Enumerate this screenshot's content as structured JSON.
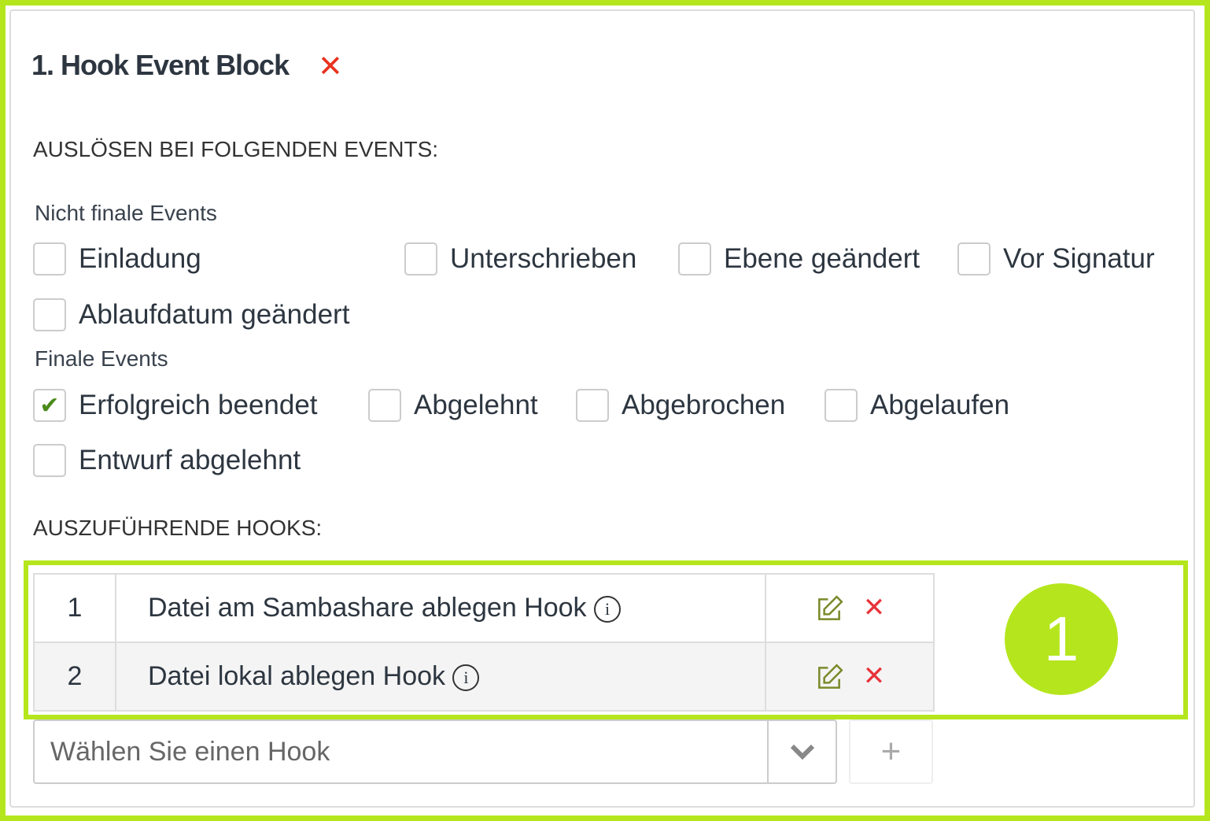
{
  "block": {
    "title": "1. Hook Event Block",
    "close_icon": "close-icon"
  },
  "events": {
    "heading": "AUSLÖSEN BEI FOLGENDEN EVENTS:",
    "non_final_label": "Nicht finale Events",
    "non_final": [
      {
        "label": "Einladung",
        "checked": false
      },
      {
        "label": "Unterschrieben",
        "checked": false
      },
      {
        "label": "Ebene geändert",
        "checked": false
      },
      {
        "label": "Vor Signatur",
        "checked": false
      },
      {
        "label": "Ablaufdatum geändert",
        "checked": false
      }
    ],
    "final_label": "Finale Events",
    "final": [
      {
        "label": "Erfolgreich beendet",
        "checked": true
      },
      {
        "label": "Abgelehnt",
        "checked": false
      },
      {
        "label": "Abgebrochen",
        "checked": false
      },
      {
        "label": "Abgelaufen",
        "checked": false
      },
      {
        "label": "Entwurf abgelehnt",
        "checked": false
      }
    ]
  },
  "hooks": {
    "heading": "AUSZUFÜHRENDE HOOKS:",
    "rows": [
      {
        "num": "1",
        "name": "Datei am Sambashare ablegen Hook"
      },
      {
        "num": "2",
        "name": "Datei lokal ablegen Hook"
      }
    ],
    "select_placeholder": "Wählen Sie einen Hook",
    "add_label": "+"
  },
  "annotation": {
    "badge": "1",
    "color": "#b5e61d"
  }
}
